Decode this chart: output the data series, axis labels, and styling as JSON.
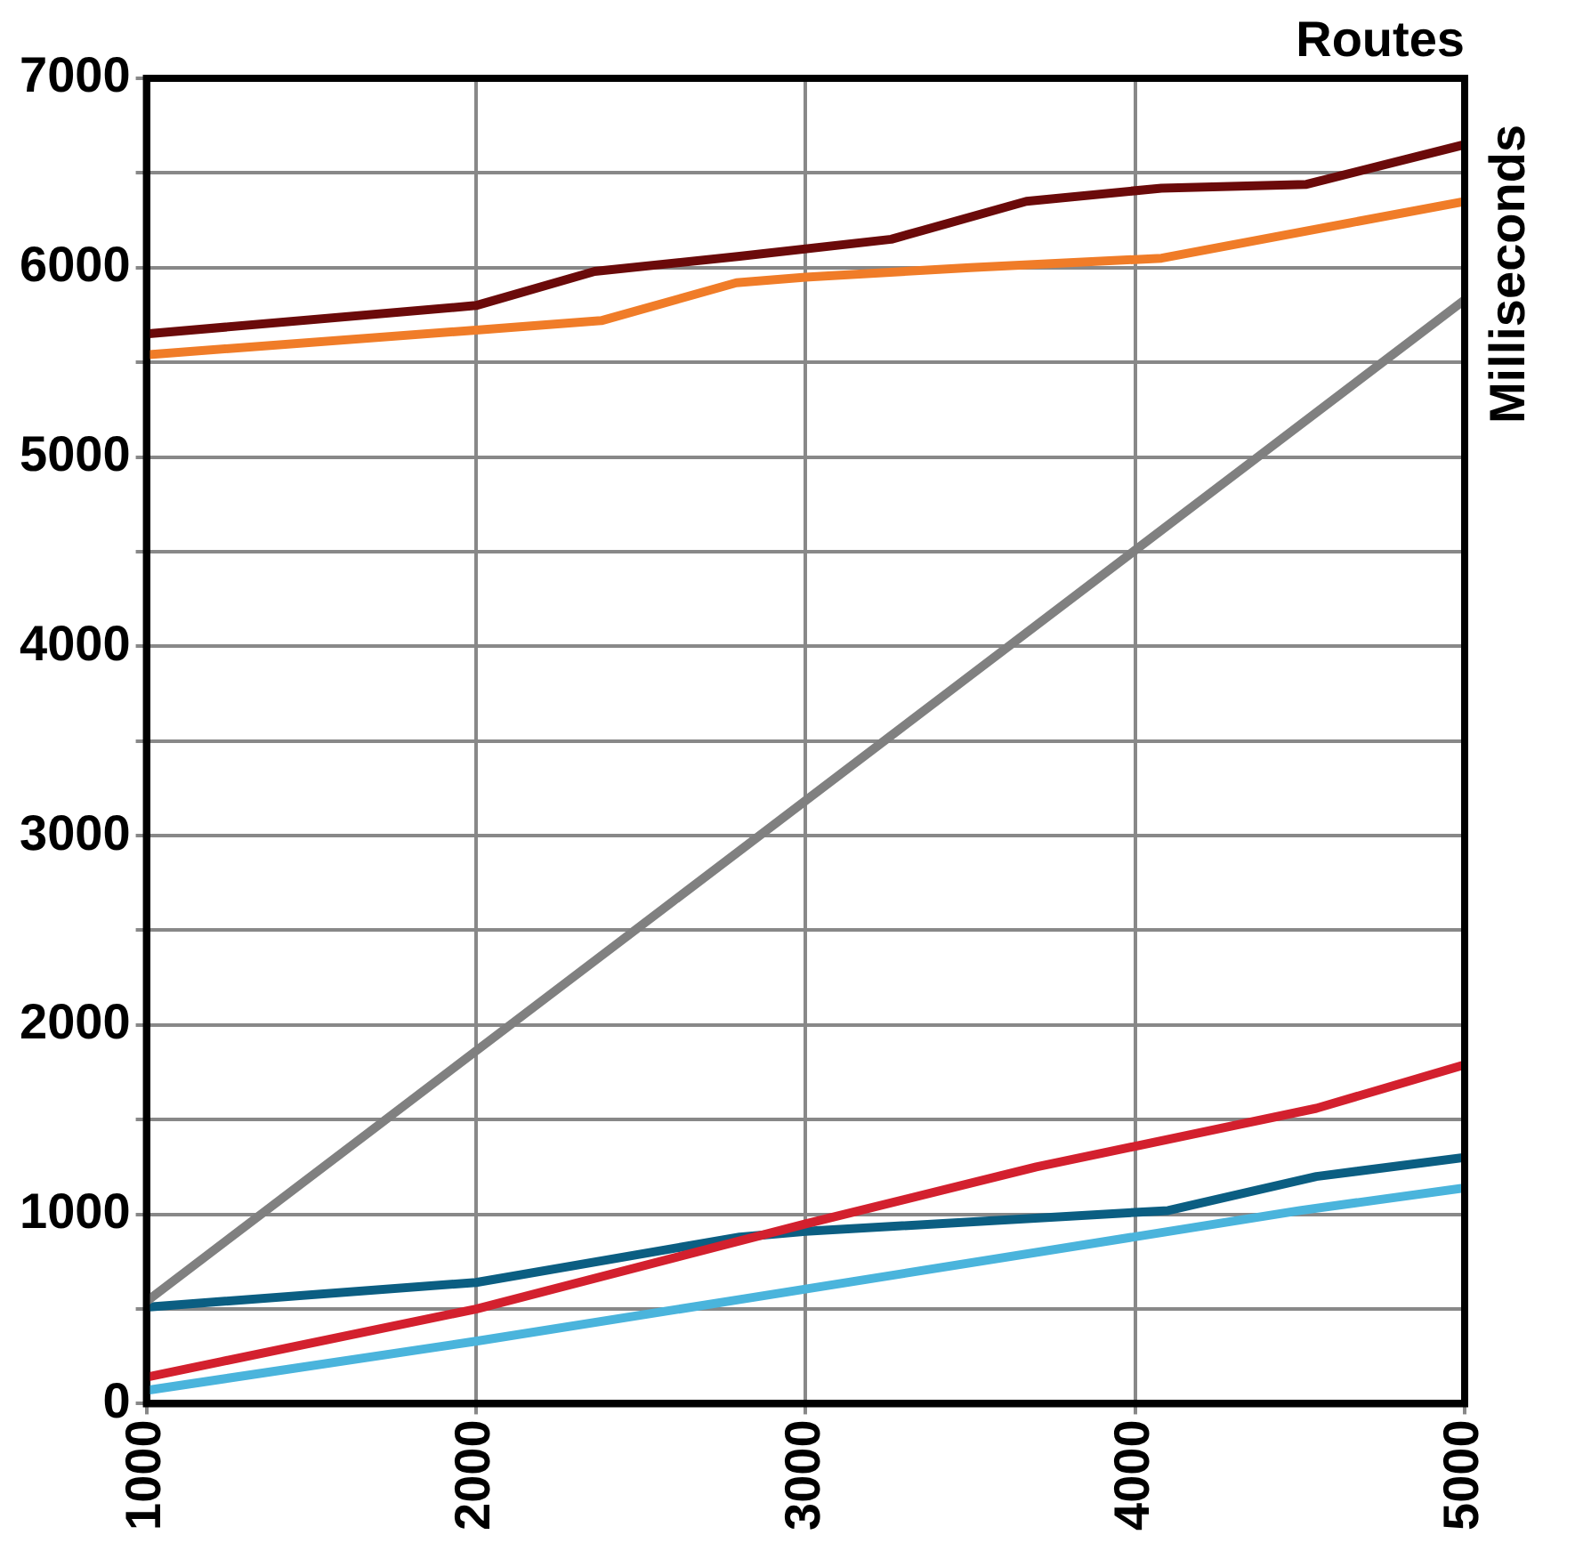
{
  "chart_data": {
    "type": "line",
    "xlabel": "Routes",
    "ylabel": "Milliseconds",
    "xlim": [
      1000,
      5000
    ],
    "xticks": [
      1000,
      2000,
      3000,
      4000,
      5000
    ],
    "ylim": [
      0,
      7000
    ],
    "yticks": [
      0,
      {
        "value": 500,
        "label": null
      },
      1000,
      {
        "value": 1500,
        "label": null
      },
      2000,
      {
        "value": 2500,
        "label": null
      },
      3000,
      {
        "value": 3500,
        "label": null
      },
      4000,
      {
        "value": 4500,
        "label": null
      },
      5000,
      {
        "value": 5500,
        "label": null
      },
      6000,
      {
        "value": 6500,
        "label": null
      },
      7000
    ],
    "grid": true,
    "legend": false,
    "marker": "none",
    "line_style": "solid",
    "series": [
      {
        "color": "#6b0a0a",
        "x": [
          1000,
          2000,
          2360,
          2800,
          3260,
          3670,
          4080,
          4520,
          5000
        ],
        "values": [
          5650,
          5800,
          5980,
          6060,
          6150,
          6350,
          6420,
          6440,
          6650
        ]
      },
      {
        "color": "#f07c28",
        "x": [
          1000,
          2000,
          2380,
          2790,
          3000,
          3500,
          4080,
          5000
        ],
        "values": [
          5540,
          5670,
          5720,
          5920,
          5950,
          6000,
          6050,
          6350
        ]
      },
      {
        "color": "#808080",
        "x": [
          1000,
          5000
        ],
        "values": [
          540,
          5830
        ]
      },
      {
        "color": "#d3202e",
        "x": [
          1000,
          2000,
          3000,
          3700,
          4550,
          5000
        ],
        "values": [
          140,
          500,
          950,
          1250,
          1560,
          1790
        ]
      },
      {
        "color": "#0b5e82",
        "x": [
          1000,
          2000,
          2800,
          3000,
          4100,
          4550,
          5000
        ],
        "values": [
          510,
          640,
          880,
          910,
          1020,
          1200,
          1300
        ]
      },
      {
        "color": "#4ab4dc",
        "x": [
          1000,
          2000,
          2800,
          4500,
          5000
        ],
        "values": [
          70,
          330,
          550,
          1020,
          1140
        ]
      }
    ]
  }
}
